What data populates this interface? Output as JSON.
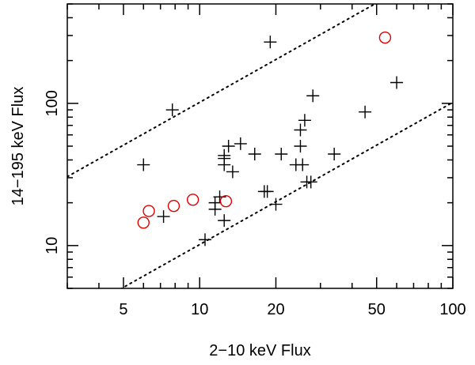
{
  "chart_data": {
    "type": "scatter",
    "title": "",
    "xlabel": "2−10 keV Flux",
    "ylabel": "14−195 keV Flux",
    "xscale": "log",
    "yscale": "log",
    "xlim": [
      3,
      100
    ],
    "ylim": [
      5,
      500
    ],
    "xticks": [
      5,
      10,
      20,
      50,
      100
    ],
    "xtick_labels": [
      "5",
      "10",
      "20",
      "50",
      "100"
    ],
    "yticks": [
      10,
      100
    ],
    "ytick_labels": [
      "10",
      "100"
    ],
    "grid": false,
    "legend": "none",
    "colors": {
      "crosses": "#000000",
      "circles": "#e00000",
      "lines": "#000000"
    },
    "reference_lines": [
      {
        "style": "dotted",
        "x": [
          3,
          100
        ],
        "y": [
          30.5,
          1016
        ]
      },
      {
        "style": "dotted",
        "x": [
          3,
          100
        ],
        "y": [
          3.05,
          101.6
        ]
      }
    ],
    "series": [
      {
        "marker": "plus",
        "x": [
          19,
          6.0,
          7.8,
          28,
          26,
          25,
          25,
          13,
          14.5,
          12.5,
          12.5,
          16.5,
          21,
          12.5,
          13.5,
          24,
          25.5,
          34,
          45,
          60,
          18,
          18.5,
          26.5,
          27.5,
          20,
          12,
          11.5,
          11.5,
          12.5,
          7.2,
          10.5
        ],
        "y": [
          270,
          37,
          90,
          113,
          76,
          65,
          50,
          50,
          52,
          43,
          41,
          44,
          44,
          37,
          33,
          37,
          37,
          44,
          87,
          140,
          24,
          24,
          28,
          28,
          19.5,
          22,
          20,
          18,
          15,
          16,
          11
        ]
      },
      {
        "marker": "circle",
        "x": [
          54,
          6.0,
          6.3,
          7.9,
          9.4,
          12.7
        ],
        "y": [
          290,
          14.5,
          17.5,
          19,
          21,
          20.5
        ]
      }
    ]
  }
}
